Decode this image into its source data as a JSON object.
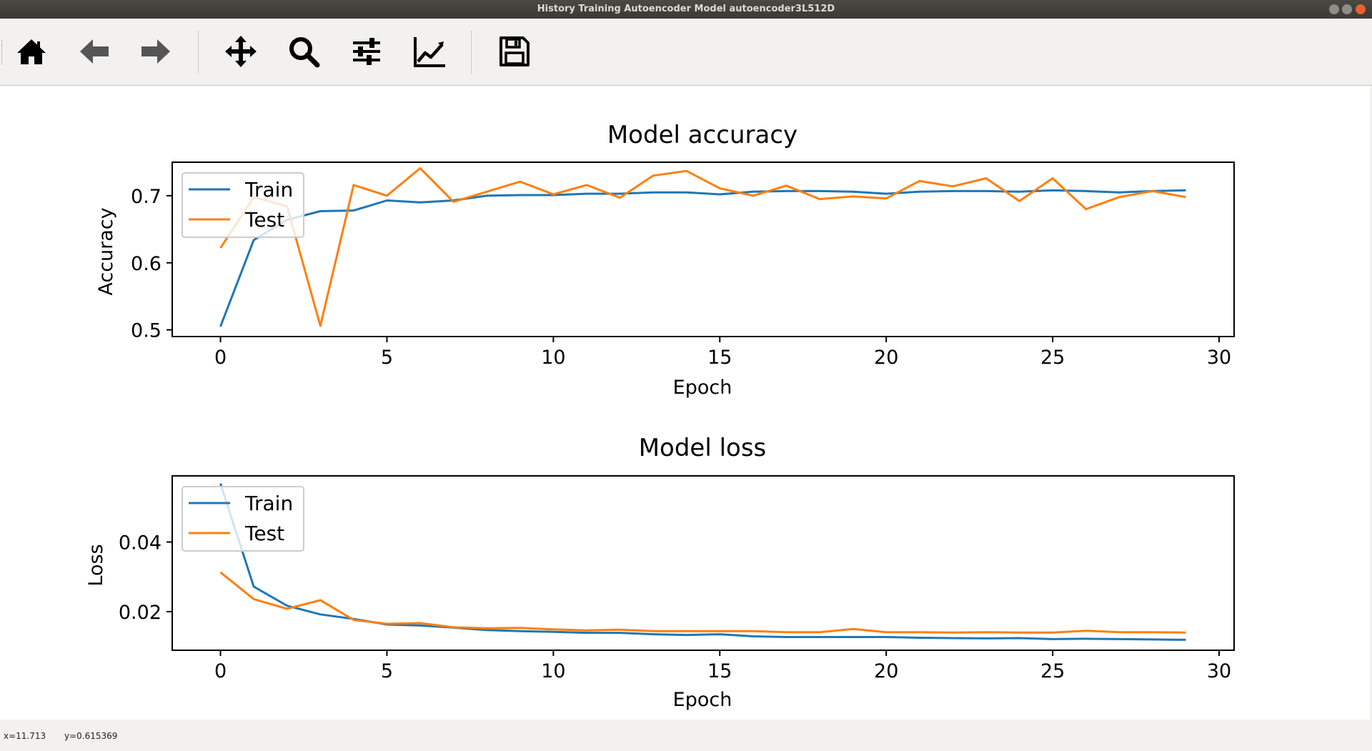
{
  "window": {
    "title": "History Training Autoencoder Model autoencoder3L512D"
  },
  "toolbar": {
    "items": [
      {
        "name": "home",
        "icon": "home-icon"
      },
      {
        "name": "back",
        "icon": "arrow-left-icon"
      },
      {
        "name": "forward",
        "icon": "arrow-right-icon"
      },
      {
        "name": "pan",
        "icon": "move-icon"
      },
      {
        "name": "zoom",
        "icon": "magnifier-icon"
      },
      {
        "name": "configure-subplots",
        "icon": "sliders-icon"
      },
      {
        "name": "edit-axis",
        "icon": "line-chart-icon"
      },
      {
        "name": "save",
        "icon": "floppy-disk-icon"
      }
    ]
  },
  "status": {
    "x": "x=11.713",
    "y": "y=0.615369"
  },
  "colors": {
    "train": "#1f77b4",
    "test": "#ff7f0e"
  },
  "chart_data": [
    {
      "type": "line",
      "title": "Model accuracy",
      "xlabel": "Epoch",
      "ylabel": "Accuracy",
      "xlim": [
        -1.45,
        30.45
      ],
      "ylim": [
        0.49,
        0.75
      ],
      "xticks": [
        0,
        5,
        10,
        15,
        20,
        25,
        30
      ],
      "xtick_labels": [
        "0",
        "5",
        "10",
        "15",
        "20",
        "25",
        "30"
      ],
      "yticks": [
        0.5,
        0.6,
        0.7
      ],
      "ytick_labels": [
        "0.5",
        "0.6",
        "0.7"
      ],
      "legend": {
        "position": "upper left",
        "entries": [
          "Train",
          "Test"
        ]
      },
      "x": [
        0,
        1,
        2,
        3,
        4,
        5,
        6,
        7,
        8,
        9,
        10,
        11,
        12,
        13,
        14,
        15,
        16,
        17,
        18,
        19,
        20,
        21,
        22,
        23,
        24,
        25,
        26,
        27,
        28,
        29
      ],
      "series": [
        {
          "name": "Train",
          "color": "#1f77b4",
          "values": [
            0.505,
            0.634,
            0.664,
            0.677,
            0.678,
            0.693,
            0.69,
            0.693,
            0.7,
            0.701,
            0.701,
            0.703,
            0.703,
            0.705,
            0.705,
            0.702,
            0.706,
            0.707,
            0.707,
            0.706,
            0.703,
            0.706,
            0.707,
            0.707,
            0.706,
            0.708,
            0.707,
            0.705,
            0.707,
            0.708
          ]
        },
        {
          "name": "Test",
          "color": "#ff7f0e",
          "values": [
            0.622,
            0.698,
            0.684,
            0.506,
            0.716,
            0.7,
            0.741,
            0.691,
            0.706,
            0.721,
            0.702,
            0.716,
            0.697,
            0.73,
            0.737,
            0.711,
            0.7,
            0.715,
            0.695,
            0.699,
            0.696,
            0.722,
            0.714,
            0.726,
            0.692,
            0.726,
            0.68,
            0.698,
            0.707,
            0.698
          ]
        }
      ]
    },
    {
      "type": "line",
      "title": "Model loss",
      "xlabel": "Epoch",
      "ylabel": "Loss",
      "xlim": [
        -1.45,
        30.45
      ],
      "ylim": [
        0.0089,
        0.059
      ],
      "xticks": [
        0,
        5,
        10,
        15,
        20,
        25,
        30
      ],
      "xtick_labels": [
        "0",
        "5",
        "10",
        "15",
        "20",
        "25",
        "30"
      ],
      "yticks": [
        0.02,
        0.04
      ],
      "ytick_labels": [
        "0.02",
        "0.04"
      ],
      "legend": {
        "position": "upper left",
        "entries": [
          "Train",
          "Test"
        ]
      },
      "x": [
        0,
        1,
        2,
        3,
        4,
        5,
        6,
        7,
        8,
        9,
        10,
        11,
        12,
        13,
        14,
        15,
        16,
        17,
        18,
        19,
        20,
        21,
        22,
        23,
        24,
        25,
        26,
        27,
        28,
        29
      ],
      "series": [
        {
          "name": "Train",
          "color": "#1f77b4",
          "values": [
            0.0568,
            0.0272,
            0.0217,
            0.0192,
            0.0179,
            0.0163,
            0.016,
            0.0154,
            0.0147,
            0.0144,
            0.0142,
            0.0139,
            0.0139,
            0.0135,
            0.0133,
            0.0135,
            0.0129,
            0.0127,
            0.0127,
            0.0127,
            0.0127,
            0.0125,
            0.0124,
            0.0123,
            0.0124,
            0.0121,
            0.0122,
            0.0121,
            0.012,
            0.0119
          ]
        },
        {
          "name": "Test",
          "color": "#ff7f0e",
          "values": [
            0.0313,
            0.0236,
            0.0208,
            0.0233,
            0.0176,
            0.0165,
            0.0167,
            0.0155,
            0.0152,
            0.0153,
            0.0149,
            0.0146,
            0.0148,
            0.0144,
            0.0144,
            0.0144,
            0.0144,
            0.0141,
            0.0141,
            0.015,
            0.0141,
            0.0141,
            0.014,
            0.0141,
            0.014,
            0.014,
            0.0145,
            0.0141,
            0.0141,
            0.014
          ]
        }
      ]
    }
  ]
}
